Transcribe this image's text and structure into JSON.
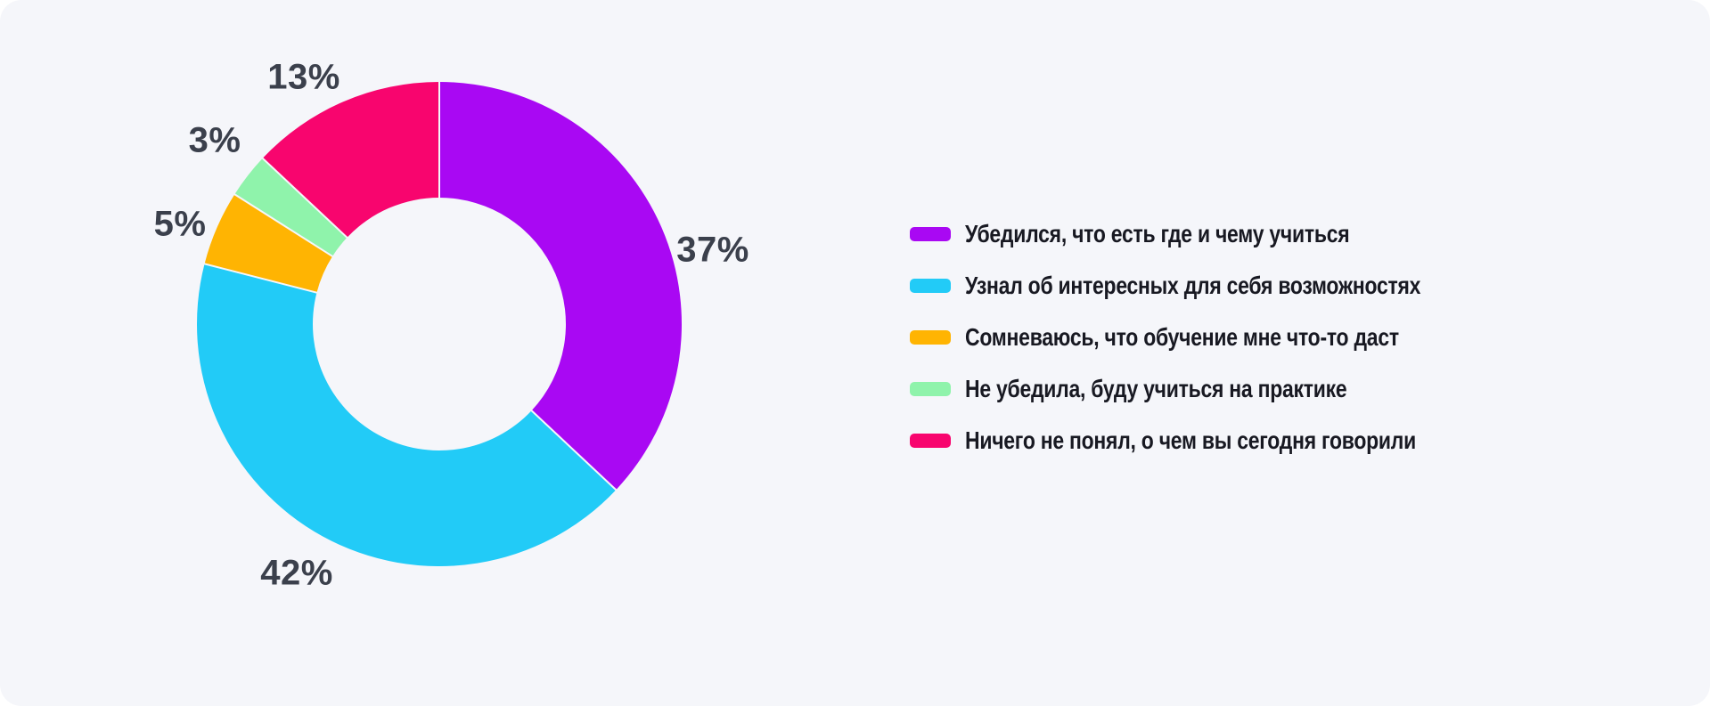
{
  "canvas": {
    "background_color": "#F5F6FA"
  },
  "chart_data": {
    "type": "pie",
    "subtype": "donut",
    "title": "",
    "direction": "clockwise",
    "start_angle_deg": 0,
    "legend_position": "right",
    "percent_label_color": "#3B404C",
    "legend_text_color": "#181922",
    "slices": [
      {
        "label": "Убедился, что есть где и чему учиться",
        "value": 37,
        "pct_label": "37%",
        "color": "#A908F3"
      },
      {
        "label": "Узнал об интересных для себя возможностях",
        "value": 42,
        "pct_label": "42%",
        "color": "#22CBF7"
      },
      {
        "label": "Сомневаюсь, что обучение мне что-то даст",
        "value": 5,
        "pct_label": "5%",
        "color": "#FFB402"
      },
      {
        "label": "Не убедила, буду учиться на практике",
        "value": 3,
        "pct_label": "3%",
        "color": "#8FF3AB"
      },
      {
        "label": "Ничего не понял, о чем вы сегодня говорили",
        "value": 13,
        "pct_label": "13%",
        "color": "#F8056E"
      }
    ]
  }
}
